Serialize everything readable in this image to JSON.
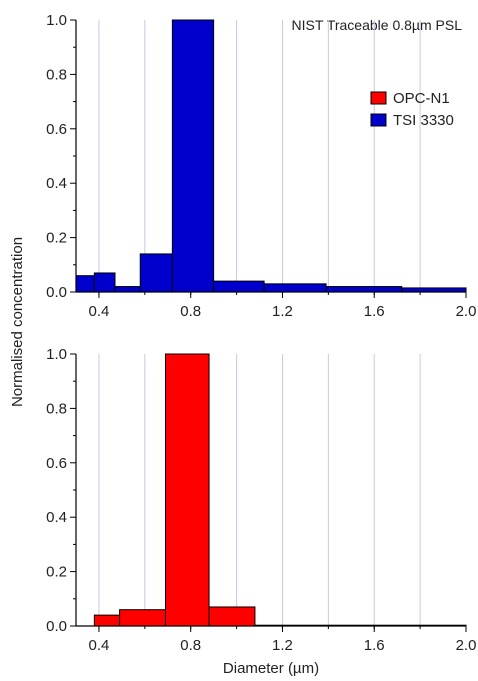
{
  "chart_data": [
    {
      "type": "bar",
      "panel": "top",
      "annotation": "NIST Traceable 0.8µm PSL",
      "xlim": [
        0.3,
        2.0
      ],
      "ylim": [
        0,
        1.0
      ],
      "xticks": [
        "0.4",
        "0.8",
        "1.2",
        "1.6",
        "2.0"
      ],
      "yticks": [
        "0.0",
        "0.2",
        "0.4",
        "0.6",
        "0.8",
        "1.0"
      ],
      "grid": "vertical",
      "legend": {
        "placement": "top-right",
        "items": [
          {
            "label": "OPC-N1",
            "color": "#ff0000"
          },
          {
            "label": "TSI 3330",
            "color": "#0000cc"
          }
        ]
      },
      "series": [
        {
          "name": "TSI 3330",
          "color": "#0000cc",
          "bins": [
            {
              "x0": 0.3,
              "x1": 0.38,
              "value": 0.06
            },
            {
              "x0": 0.38,
              "x1": 0.47,
              "value": 0.07
            },
            {
              "x0": 0.47,
              "x1": 0.58,
              "value": 0.02
            },
            {
              "x0": 0.58,
              "x1": 0.72,
              "value": 0.14
            },
            {
              "x0": 0.72,
              "x1": 0.9,
              "value": 1.0
            },
            {
              "x0": 0.9,
              "x1": 1.12,
              "value": 0.04
            },
            {
              "x0": 1.12,
              "x1": 1.39,
              "value": 0.03
            },
            {
              "x0": 1.39,
              "x1": 1.72,
              "value": 0.02
            },
            {
              "x0": 1.72,
              "x1": 2.0,
              "value": 0.015
            }
          ]
        }
      ]
    },
    {
      "type": "bar",
      "panel": "bottom",
      "xlabel": "Diameter (µm)",
      "xlim": [
        0.3,
        2.0
      ],
      "ylim": [
        0,
        1.0
      ],
      "xticks": [
        "0.4",
        "0.8",
        "1.2",
        "1.6",
        "2.0"
      ],
      "yticks": [
        "0.0",
        "0.2",
        "0.4",
        "0.6",
        "0.8",
        "1.0"
      ],
      "grid": "vertical",
      "series": [
        {
          "name": "OPC-N1",
          "color": "#ff0000",
          "bins": [
            {
              "x0": 0.38,
              "x1": 0.49,
              "value": 0.04
            },
            {
              "x0": 0.49,
              "x1": 0.69,
              "value": 0.06
            },
            {
              "x0": 0.69,
              "x1": 0.88,
              "value": 1.0
            },
            {
              "x0": 0.88,
              "x1": 1.08,
              "value": 0.07
            },
            {
              "x0": 1.08,
              "x1": 2.0,
              "value": 0.0
            }
          ]
        }
      ]
    }
  ],
  "shared_ylabel": "Normalised concentration"
}
